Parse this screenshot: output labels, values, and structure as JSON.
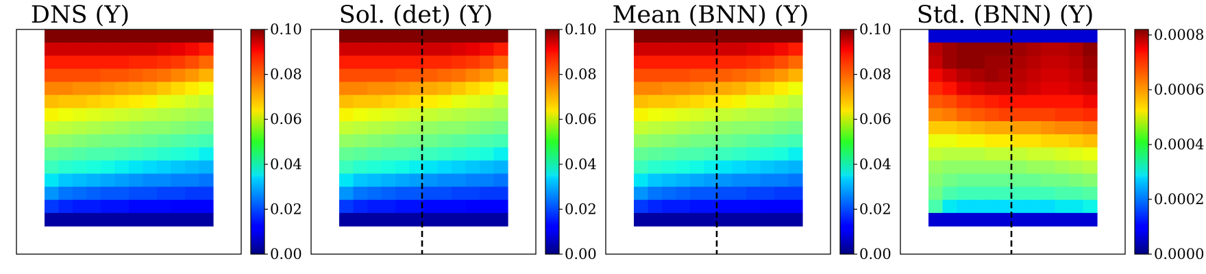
{
  "chart_data": [
    {
      "type": "heatmap",
      "title": "DNS (Y)",
      "colormap": "jet",
      "colorbar": {
        "range": [
          0,
          0.1
        ],
        "ticks": [
          "0.00",
          "0.02",
          "0.04",
          "0.06",
          "0.08",
          "0.10"
        ]
      },
      "dashed_line": false,
      "rows": [
        [
          0.1,
          0.1,
          0.1,
          0.1,
          0.1,
          0.1,
          0.1,
          0.1,
          0.1,
          0.1,
          0.1,
          0.1
        ],
        [
          0.093,
          0.093,
          0.093,
          0.093,
          0.093,
          0.093,
          0.093,
          0.093,
          0.092,
          0.091,
          0.09,
          0.088
        ],
        [
          0.088,
          0.088,
          0.088,
          0.088,
          0.088,
          0.088,
          0.087,
          0.087,
          0.086,
          0.085,
          0.083,
          0.08
        ],
        [
          0.083,
          0.083,
          0.083,
          0.083,
          0.082,
          0.082,
          0.081,
          0.08,
          0.079,
          0.077,
          0.075,
          0.072
        ],
        [
          0.077,
          0.077,
          0.076,
          0.076,
          0.075,
          0.074,
          0.073,
          0.072,
          0.07,
          0.068,
          0.066,
          0.064
        ],
        [
          0.071,
          0.07,
          0.07,
          0.069,
          0.068,
          0.067,
          0.066,
          0.065,
          0.063,
          0.062,
          0.06,
          0.058
        ],
        [
          0.065,
          0.064,
          0.063,
          0.062,
          0.061,
          0.06,
          0.059,
          0.058,
          0.057,
          0.056,
          0.055,
          0.054
        ],
        [
          0.059,
          0.058,
          0.057,
          0.056,
          0.055,
          0.054,
          0.053,
          0.052,
          0.052,
          0.051,
          0.05,
          0.049
        ],
        [
          0.053,
          0.052,
          0.051,
          0.05,
          0.049,
          0.049,
          0.048,
          0.047,
          0.046,
          0.045,
          0.044,
          0.043
        ],
        [
          0.047,
          0.046,
          0.045,
          0.044,
          0.044,
          0.043,
          0.042,
          0.041,
          0.04,
          0.039,
          0.038,
          0.036
        ],
        [
          0.042,
          0.04,
          0.039,
          0.038,
          0.037,
          0.036,
          0.035,
          0.034,
          0.033,
          0.032,
          0.031,
          0.03
        ],
        [
          0.035,
          0.032,
          0.031,
          0.03,
          0.029,
          0.028,
          0.027,
          0.026,
          0.026,
          0.025,
          0.025,
          0.024
        ],
        [
          0.027,
          0.024,
          0.023,
          0.022,
          0.021,
          0.021,
          0.02,
          0.02,
          0.019,
          0.019,
          0.018,
          0.018
        ],
        [
          0.018,
          0.016,
          0.015,
          0.015,
          0.014,
          0.014,
          0.013,
          0.013,
          0.013,
          0.012,
          0.012,
          0.012
        ],
        [
          0.003,
          0.003,
          0.003,
          0.003,
          0.003,
          0.003,
          0.003,
          0.003,
          0.003,
          0.003,
          0.003,
          0.003
        ]
      ]
    },
    {
      "type": "heatmap",
      "title": "Sol. (det) (Y)",
      "colormap": "jet",
      "colorbar": {
        "range": [
          0,
          0.1
        ],
        "ticks": [
          "0.00",
          "0.02",
          "0.04",
          "0.06",
          "0.08",
          "0.10"
        ]
      },
      "dashed_line": true,
      "rows": [
        [
          0.1,
          0.1,
          0.1,
          0.1,
          0.1,
          0.1,
          0.1,
          0.1,
          0.1,
          0.1,
          0.1,
          0.1
        ],
        [
          0.093,
          0.093,
          0.093,
          0.093,
          0.093,
          0.093,
          0.093,
          0.093,
          0.092,
          0.091,
          0.09,
          0.088
        ],
        [
          0.088,
          0.088,
          0.088,
          0.088,
          0.088,
          0.088,
          0.087,
          0.087,
          0.086,
          0.085,
          0.083,
          0.08
        ],
        [
          0.083,
          0.083,
          0.083,
          0.083,
          0.082,
          0.082,
          0.081,
          0.08,
          0.079,
          0.077,
          0.075,
          0.072
        ],
        [
          0.077,
          0.077,
          0.076,
          0.076,
          0.075,
          0.074,
          0.073,
          0.072,
          0.07,
          0.068,
          0.066,
          0.064
        ],
        [
          0.071,
          0.07,
          0.07,
          0.069,
          0.068,
          0.067,
          0.066,
          0.065,
          0.063,
          0.062,
          0.06,
          0.058
        ],
        [
          0.065,
          0.064,
          0.063,
          0.062,
          0.061,
          0.06,
          0.059,
          0.058,
          0.057,
          0.056,
          0.055,
          0.054
        ],
        [
          0.059,
          0.058,
          0.057,
          0.056,
          0.055,
          0.054,
          0.053,
          0.052,
          0.052,
          0.051,
          0.05,
          0.049
        ],
        [
          0.053,
          0.052,
          0.051,
          0.05,
          0.049,
          0.049,
          0.048,
          0.047,
          0.046,
          0.045,
          0.044,
          0.043
        ],
        [
          0.047,
          0.046,
          0.045,
          0.044,
          0.044,
          0.043,
          0.042,
          0.041,
          0.04,
          0.039,
          0.038,
          0.036
        ],
        [
          0.042,
          0.04,
          0.039,
          0.038,
          0.037,
          0.036,
          0.035,
          0.034,
          0.033,
          0.032,
          0.031,
          0.03
        ],
        [
          0.035,
          0.032,
          0.031,
          0.03,
          0.029,
          0.028,
          0.027,
          0.026,
          0.026,
          0.025,
          0.025,
          0.024
        ],
        [
          0.027,
          0.024,
          0.023,
          0.022,
          0.021,
          0.021,
          0.02,
          0.02,
          0.019,
          0.019,
          0.018,
          0.018
        ],
        [
          0.018,
          0.016,
          0.015,
          0.015,
          0.014,
          0.014,
          0.013,
          0.013,
          0.013,
          0.012,
          0.012,
          0.012
        ],
        [
          0.003,
          0.003,
          0.003,
          0.003,
          0.003,
          0.003,
          0.003,
          0.003,
          0.003,
          0.003,
          0.003,
          0.003
        ]
      ]
    },
    {
      "type": "heatmap",
      "title": "Mean (BNN) (Y)",
      "colormap": "jet",
      "colorbar": {
        "range": [
          0,
          0.1
        ],
        "ticks": [
          "0.00",
          "0.02",
          "0.04",
          "0.06",
          "0.08",
          "0.10"
        ]
      },
      "dashed_line": true,
      "rows": [
        [
          0.1,
          0.1,
          0.1,
          0.1,
          0.1,
          0.1,
          0.1,
          0.1,
          0.1,
          0.1,
          0.1,
          0.1
        ],
        [
          0.093,
          0.093,
          0.093,
          0.093,
          0.093,
          0.093,
          0.093,
          0.093,
          0.092,
          0.091,
          0.09,
          0.088
        ],
        [
          0.088,
          0.088,
          0.088,
          0.088,
          0.088,
          0.088,
          0.087,
          0.087,
          0.086,
          0.085,
          0.083,
          0.08
        ],
        [
          0.083,
          0.083,
          0.083,
          0.083,
          0.082,
          0.082,
          0.081,
          0.08,
          0.079,
          0.077,
          0.075,
          0.072
        ],
        [
          0.077,
          0.077,
          0.076,
          0.076,
          0.075,
          0.074,
          0.073,
          0.072,
          0.07,
          0.068,
          0.066,
          0.064
        ],
        [
          0.071,
          0.07,
          0.07,
          0.069,
          0.068,
          0.067,
          0.066,
          0.065,
          0.063,
          0.062,
          0.06,
          0.058
        ],
        [
          0.065,
          0.064,
          0.063,
          0.062,
          0.061,
          0.06,
          0.059,
          0.058,
          0.057,
          0.056,
          0.055,
          0.054
        ],
        [
          0.059,
          0.058,
          0.057,
          0.056,
          0.055,
          0.054,
          0.053,
          0.052,
          0.052,
          0.051,
          0.05,
          0.049
        ],
        [
          0.053,
          0.052,
          0.051,
          0.05,
          0.049,
          0.049,
          0.048,
          0.047,
          0.046,
          0.045,
          0.044,
          0.043
        ],
        [
          0.047,
          0.046,
          0.045,
          0.044,
          0.044,
          0.043,
          0.042,
          0.041,
          0.04,
          0.039,
          0.038,
          0.036
        ],
        [
          0.042,
          0.04,
          0.039,
          0.038,
          0.037,
          0.036,
          0.035,
          0.034,
          0.033,
          0.032,
          0.031,
          0.03
        ],
        [
          0.035,
          0.032,
          0.031,
          0.03,
          0.029,
          0.028,
          0.027,
          0.026,
          0.026,
          0.025,
          0.025,
          0.024
        ],
        [
          0.027,
          0.024,
          0.023,
          0.022,
          0.021,
          0.021,
          0.02,
          0.02,
          0.019,
          0.019,
          0.018,
          0.018
        ],
        [
          0.018,
          0.016,
          0.015,
          0.015,
          0.014,
          0.014,
          0.013,
          0.013,
          0.013,
          0.012,
          0.012,
          0.012
        ],
        [
          0.003,
          0.003,
          0.003,
          0.003,
          0.003,
          0.003,
          0.003,
          0.003,
          0.003,
          0.003,
          0.003,
          0.003
        ]
      ]
    },
    {
      "type": "heatmap",
      "title": "Std. (BNN) (Y)",
      "colormap": "jet",
      "colorbar": {
        "range": [
          0,
          0.00082
        ],
        "ticks": [
          "0.0000",
          "0.0002",
          "0.0004",
          "0.0006",
          "0.0008"
        ]
      },
      "dashed_line": true,
      "rows": [
        [
          6e-05,
          6e-05,
          6e-05,
          6e-05,
          6e-05,
          6e-05,
          6e-05,
          6e-05,
          6e-05,
          6e-05,
          6e-05,
          6e-05
        ],
        [
          0.00078,
          0.0008,
          0.00081,
          0.00081,
          0.00081,
          0.00081,
          0.0008,
          0.00079,
          0.00078,
          0.00078,
          0.00079,
          0.00081
        ],
        [
          0.00077,
          0.0008,
          0.00081,
          0.00081,
          0.0008,
          0.0008,
          0.00079,
          0.00078,
          0.00077,
          0.00077,
          0.00078,
          0.0008
        ],
        [
          0.00074,
          0.00076,
          0.00078,
          0.00079,
          0.0008,
          0.00079,
          0.00078,
          0.00077,
          0.00076,
          0.00076,
          0.00077,
          0.00079
        ],
        [
          0.00071,
          0.00073,
          0.00075,
          0.00076,
          0.00077,
          0.00077,
          0.00077,
          0.00076,
          0.00075,
          0.00075,
          0.00076,
          0.00077
        ],
        [
          0.00067,
          0.00068,
          0.0007,
          0.00071,
          0.00072,
          0.00073,
          0.00073,
          0.00073,
          0.00073,
          0.00073,
          0.00073,
          0.00074
        ],
        [
          0.00063,
          0.00064,
          0.00066,
          0.00067,
          0.00068,
          0.00069,
          0.00069,
          0.00069,
          0.00069,
          0.0007,
          0.0007,
          0.00071
        ],
        [
          0.00057,
          0.00057,
          0.00058,
          0.00059,
          0.0006,
          0.0006,
          0.00061,
          0.00061,
          0.00062,
          0.00063,
          0.00063,
          0.00064
        ],
        [
          0.00052,
          0.00052,
          0.00053,
          0.00053,
          0.00054,
          0.00054,
          0.00055,
          0.00055,
          0.00056,
          0.00056,
          0.00057,
          0.00058
        ],
        [
          0.00048,
          0.00047,
          0.00047,
          0.00047,
          0.00048,
          0.00048,
          0.00048,
          0.00049,
          0.00049,
          0.0005,
          0.00051,
          0.00052
        ],
        [
          0.00044,
          0.00043,
          0.00043,
          0.00043,
          0.00043,
          0.00043,
          0.00043,
          0.00044,
          0.00044,
          0.00045,
          0.00046,
          0.00047
        ],
        [
          0.00042,
          0.0004,
          0.00039,
          0.00039,
          0.00039,
          0.00039,
          0.00039,
          0.00039,
          0.0004,
          0.0004,
          0.00041,
          0.00042
        ],
        [
          0.0004,
          0.00036,
          0.00035,
          0.00035,
          0.00035,
          0.00035,
          0.00035,
          0.00035,
          0.00035,
          0.00036,
          0.00036,
          0.00037
        ],
        [
          0.00036,
          0.00029,
          0.00028,
          0.00028,
          0.00028,
          0.00028,
          0.00028,
          0.00028,
          0.00028,
          0.00029,
          0.00029,
          0.0003
        ],
        [
          6e-05,
          6e-05,
          6e-05,
          6e-05,
          6e-05,
          6e-05,
          6e-05,
          6e-05,
          6e-05,
          6e-05,
          6e-05,
          6e-05
        ]
      ]
    }
  ]
}
